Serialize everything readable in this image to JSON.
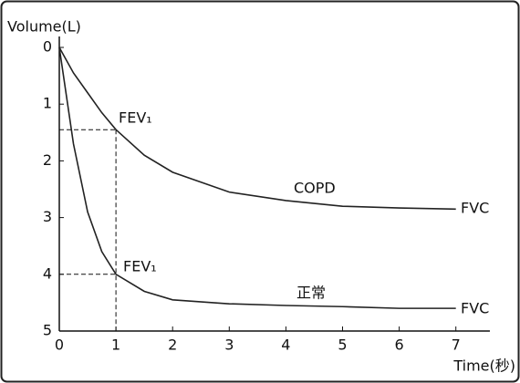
{
  "chart_data": {
    "type": "line",
    "y_label": "Volume(L)",
    "x_label": "Time(秒)",
    "x": [
      0,
      0.25,
      0.5,
      0.75,
      1,
      1.5,
      2,
      3,
      4,
      5,
      6,
      7
    ],
    "series": [
      {
        "name": "COPD",
        "color": "#222222",
        "values": [
          0,
          0.45,
          0.8,
          1.15,
          1.45,
          1.9,
          2.2,
          2.55,
          2.7,
          2.8,
          2.83,
          2.85
        ]
      },
      {
        "name": "正常",
        "color": "#222222",
        "values": [
          0,
          1.7,
          2.9,
          3.6,
          4.0,
          4.3,
          4.45,
          4.52,
          4.55,
          4.57,
          4.6,
          4.6
        ]
      }
    ],
    "annotations": [
      "FEV₁",
      "FEV₁",
      "FVC",
      "FVC"
    ],
    "xlim": [
      0,
      7.6
    ],
    "ylim": [
      0,
      5
    ],
    "y_inverted": true,
    "xticks": [
      0,
      1,
      2,
      3,
      4,
      5,
      6,
      7
    ],
    "yticks": [
      0,
      1,
      2,
      3,
      4,
      5
    ]
  }
}
